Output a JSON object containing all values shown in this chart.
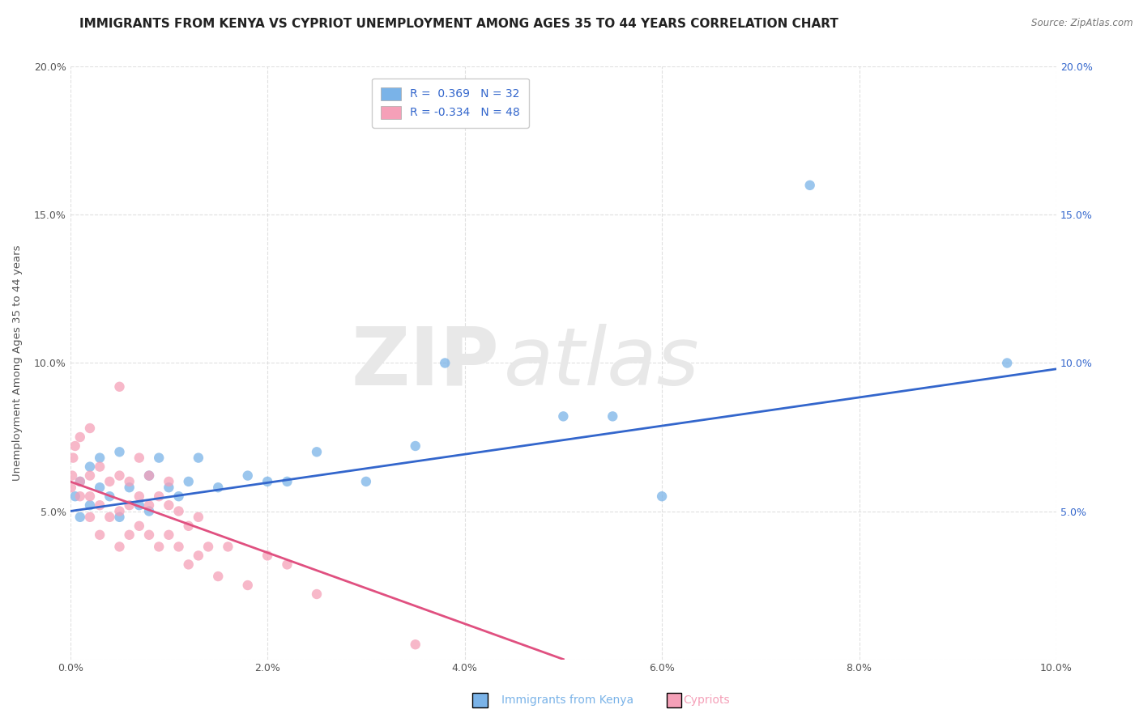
{
  "title": "IMMIGRANTS FROM KENYA VS CYPRIOT UNEMPLOYMENT AMONG AGES 35 TO 44 YEARS CORRELATION CHART",
  "source": "Source: ZipAtlas.com",
  "ylabel": "Unemployment Among Ages 35 to 44 years",
  "xlim": [
    0.0,
    0.1
  ],
  "ylim": [
    0.0,
    0.2
  ],
  "xticks": [
    0.0,
    0.02,
    0.04,
    0.06,
    0.08,
    0.1
  ],
  "xticklabels": [
    "0.0%",
    "2.0%",
    "4.0%",
    "6.0%",
    "8.0%",
    "10.0%"
  ],
  "yticks": [
    0.0,
    0.05,
    0.1,
    0.15,
    0.2
  ],
  "yticklabels": [
    "",
    "5.0%",
    "10.0%",
    "15.0%",
    "20.0%"
  ],
  "right_yticklabels": [
    "",
    "5.0%",
    "10.0%",
    "15.0%",
    "20.0%"
  ],
  "kenya_color": "#7ab3e8",
  "kenya_R": 0.369,
  "kenya_N": 32,
  "kenya_line_color": "#3366cc",
  "kenya_scatter_x": [
    0.0005,
    0.001,
    0.001,
    0.002,
    0.002,
    0.003,
    0.003,
    0.004,
    0.005,
    0.005,
    0.006,
    0.007,
    0.008,
    0.008,
    0.009,
    0.01,
    0.011,
    0.012,
    0.013,
    0.015,
    0.018,
    0.02,
    0.022,
    0.025,
    0.03,
    0.035,
    0.038,
    0.05,
    0.055,
    0.06,
    0.075,
    0.095
  ],
  "kenya_scatter_y": [
    0.055,
    0.048,
    0.06,
    0.052,
    0.065,
    0.058,
    0.068,
    0.055,
    0.048,
    0.07,
    0.058,
    0.052,
    0.062,
    0.05,
    0.068,
    0.058,
    0.055,
    0.06,
    0.068,
    0.058,
    0.062,
    0.06,
    0.06,
    0.07,
    0.06,
    0.072,
    0.1,
    0.082,
    0.082,
    0.055,
    0.16,
    0.1
  ],
  "cypriot_color": "#f5a0b8",
  "cypriot_R": -0.334,
  "cypriot_N": 48,
  "cypriot_line_color": "#e05080",
  "cypriot_scatter_x": [
    0.0001,
    0.0002,
    0.0003,
    0.0005,
    0.001,
    0.001,
    0.001,
    0.002,
    0.002,
    0.002,
    0.002,
    0.003,
    0.003,
    0.003,
    0.004,
    0.004,
    0.005,
    0.005,
    0.005,
    0.005,
    0.006,
    0.006,
    0.006,
    0.007,
    0.007,
    0.007,
    0.008,
    0.008,
    0.008,
    0.009,
    0.009,
    0.01,
    0.01,
    0.01,
    0.011,
    0.011,
    0.012,
    0.012,
    0.013,
    0.013,
    0.014,
    0.015,
    0.016,
    0.018,
    0.02,
    0.022,
    0.025,
    0.035
  ],
  "cypriot_scatter_y": [
    0.058,
    0.062,
    0.068,
    0.072,
    0.055,
    0.06,
    0.075,
    0.048,
    0.055,
    0.062,
    0.078,
    0.042,
    0.052,
    0.065,
    0.048,
    0.06,
    0.038,
    0.05,
    0.062,
    0.092,
    0.042,
    0.052,
    0.06,
    0.045,
    0.055,
    0.068,
    0.042,
    0.052,
    0.062,
    0.038,
    0.055,
    0.042,
    0.052,
    0.06,
    0.038,
    0.05,
    0.032,
    0.045,
    0.035,
    0.048,
    0.038,
    0.028,
    0.038,
    0.025,
    0.035,
    0.032,
    0.022,
    0.005
  ],
  "kenya_trend": [
    0.05,
    0.098
  ],
  "cypriot_trend": [
    0.06,
    0.0
  ],
  "watermark_zip": "ZIP",
  "watermark_atlas": "atlas",
  "watermark_color": "#e8e8e8",
  "background_color": "#ffffff",
  "grid_color": "#dddddd",
  "title_fontsize": 11,
  "axis_label_fontsize": 9.5,
  "tick_fontsize": 9,
  "legend_fontsize": 10
}
